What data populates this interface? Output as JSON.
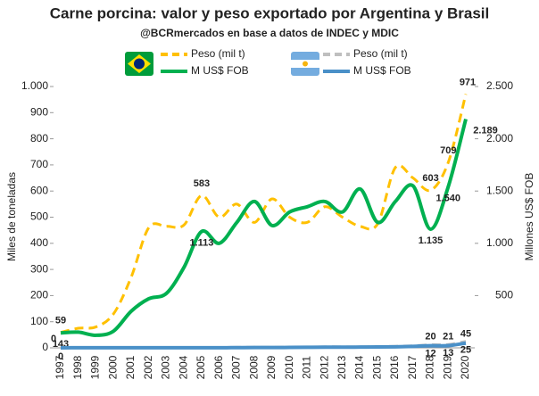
{
  "chart_data": {
    "type": "line",
    "title": "Carne porcina: valor y peso exportado por Argentina y Brasil",
    "subtitle": "@BCRmercados en base a datos de INDEC y MDIC",
    "y_label": "Miles de toneladas",
    "y2_label": "Millones US$ FOB",
    "x": [
      1997,
      1998,
      1999,
      2000,
      2001,
      2002,
      2003,
      2004,
      2005,
      2006,
      2007,
      2008,
      2009,
      2010,
      2011,
      2012,
      2013,
      2014,
      2015,
      2016,
      2017,
      2018,
      2019,
      2020
    ],
    "xlim": [
      1997,
      2020
    ],
    "ylim": [
      0,
      1000
    ],
    "yticks": [
      0,
      100,
      200,
      300,
      400,
      500,
      600,
      700,
      800,
      900,
      {
        "value": 1000,
        "label": "1.000"
      }
    ],
    "y2lim": [
      0,
      2500
    ],
    "y2ticks": [
      500,
      {
        "value": 1000,
        "label": "1.000"
      },
      {
        "value": 1500,
        "label": "1.500"
      },
      {
        "value": 2000,
        "label": "2.000"
      },
      {
        "value": 2500,
        "label": "2.500"
      }
    ],
    "series": [
      {
        "name": "Peso (mil t)",
        "group": "Brasil",
        "color": "#ffc000",
        "dashed": true,
        "axis": "y",
        "values": [
          59,
          75,
          80,
          130,
          270,
          460,
          465,
          470,
          583,
          500,
          550,
          480,
          570,
          500,
          480,
          540,
          500,
          465,
          475,
          690,
          650,
          603,
          709,
          971
        ],
        "value_labels": [
          "59",
          null,
          null,
          null,
          null,
          null,
          null,
          null,
          "583",
          null,
          null,
          null,
          null,
          null,
          null,
          null,
          null,
          null,
          null,
          null,
          null,
          "603",
          "709",
          "971"
        ]
      },
      {
        "name": "M US$ FOB",
        "group": "Brasil",
        "color": "#00b050",
        "dashed": false,
        "axis": "y2",
        "values": [
          143,
          150,
          120,
          160,
          350,
          470,
          520,
          770,
          1113,
          1000,
          1200,
          1400,
          1170,
          1300,
          1350,
          1400,
          1300,
          1520,
          1200,
          1400,
          1550,
          1135,
          1540,
          2189
        ],
        "value_labels": [
          "143",
          null,
          null,
          null,
          null,
          null,
          null,
          null,
          "1.113",
          null,
          null,
          null,
          null,
          null,
          null,
          null,
          null,
          null,
          null,
          null,
          null,
          "1.135",
          "1.540",
          "2.189"
        ]
      },
      {
        "name": "Peso (mil t)",
        "group": "Argentina",
        "color": "#bfbfbf",
        "dashed": true,
        "axis": "y",
        "values": [
          0,
          1,
          1,
          1,
          1,
          1,
          1,
          1,
          1,
          1,
          2,
          2,
          2,
          3,
          3,
          4,
          4,
          4,
          5,
          6,
          8,
          12,
          13,
          25
        ],
        "value_labels": [
          "0",
          null,
          null,
          null,
          null,
          null,
          null,
          null,
          null,
          null,
          null,
          null,
          null,
          null,
          null,
          null,
          null,
          null,
          null,
          null,
          null,
          "12",
          "13",
          "25"
        ]
      },
      {
        "name": "M US$ FOB",
        "group": "Argentina",
        "color": "#4a90c8",
        "dashed": false,
        "axis": "y2",
        "values": [
          0,
          1,
          1,
          1,
          1,
          1,
          1,
          1,
          1,
          1,
          2,
          3,
          3,
          4,
          5,
          6,
          6,
          7,
          8,
          10,
          14,
          20,
          21,
          45
        ],
        "value_labels": [
          "0",
          null,
          null,
          null,
          null,
          null,
          null,
          null,
          null,
          null,
          null,
          null,
          null,
          null,
          null,
          null,
          null,
          null,
          null,
          null,
          null,
          "20",
          "21",
          "45"
        ]
      }
    ]
  }
}
